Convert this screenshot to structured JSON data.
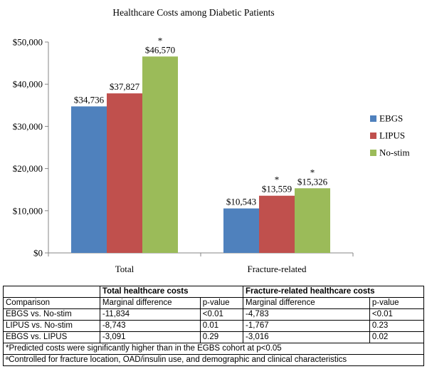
{
  "chart_data": {
    "type": "bar",
    "title": "Healthcare Costs among Diabetic Patients",
    "categories": [
      "Total",
      "Fracture-related"
    ],
    "series": [
      {
        "name": "EBGS",
        "color": "#4F81BD",
        "values": [
          34736,
          10543
        ],
        "labels": [
          "$34,736",
          "$10,543"
        ],
        "stars": [
          "",
          ""
        ]
      },
      {
        "name": "LIPUS",
        "color": "#C0504D",
        "values": [
          37827,
          13559
        ],
        "labels": [
          "$37,827",
          "$13,559"
        ],
        "stars": [
          "",
          "*"
        ]
      },
      {
        "name": "No-stim",
        "color": "#9BBB59",
        "values": [
          46570,
          15326
        ],
        "labels": [
          "$46,570",
          "$15,326"
        ],
        "stars": [
          "*",
          "*"
        ]
      }
    ],
    "ylim": [
      0,
      50000
    ],
    "yticks": [
      0,
      10000,
      20000,
      30000,
      40000,
      50000
    ],
    "ytick_labels": [
      "$0",
      "$10,000",
      "$20,000",
      "$30,000",
      "$40,000",
      "$50,000"
    ],
    "xlabel": "",
    "ylabel": "",
    "legend_position": "right",
    "grid": false
  },
  "table": {
    "groups": [
      "Total healthcare costs",
      "Fracture-related healthcare costs"
    ],
    "columns": [
      "Comparison",
      "Marginal difference",
      "p-value",
      "Marginal difference",
      "p-value"
    ],
    "rows": [
      [
        "EBGS vs. No-stim",
        "-11,834",
        "<0.01",
        "-4,783",
        "<0.01"
      ],
      [
        "LIPUS vs. No-stim",
        "-8,743",
        "0.01",
        "-1,767",
        "0.23"
      ],
      [
        "EBGS vs. LIPUS",
        "-3,091",
        "0.29",
        "-3,016",
        "0.02"
      ]
    ],
    "footnotes": [
      "*Predicted costs were significantly higher than in the EGBS cohort at p<0.05",
      "ªControlled for fracture location, OAD/insulin use, and demographic and clinical characteristics"
    ]
  }
}
